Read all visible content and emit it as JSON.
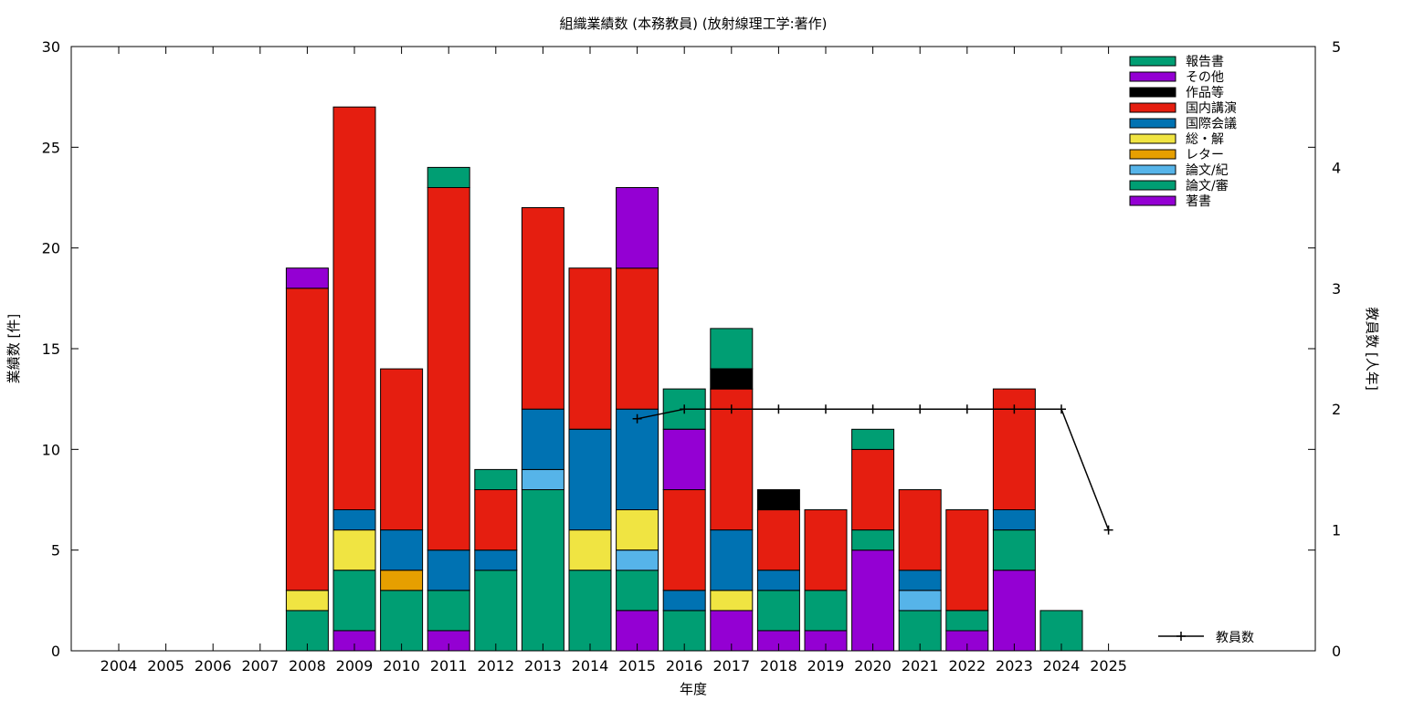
{
  "chart_data": {
    "type": "bar",
    "stacked": true,
    "title": "組織業績数 (本務教員) (放射線理工学:著作)",
    "xlabel": "年度",
    "ylabel": "業績数 [件]",
    "y2label": "教員数 [人年]",
    "ylim": [
      0,
      30
    ],
    "y2lim": [
      0,
      5
    ],
    "yticks": [
      0,
      5,
      10,
      15,
      20,
      25,
      30
    ],
    "y2ticks": [
      0,
      1,
      2,
      3,
      4,
      5
    ],
    "grid": false,
    "legend_position": "top-right",
    "categories": [
      "2004",
      "2005",
      "2006",
      "2007",
      "2008",
      "2009",
      "2010",
      "2011",
      "2012",
      "2013",
      "2014",
      "2015",
      "2016",
      "2017",
      "2018",
      "2019",
      "2020",
      "2021",
      "2022",
      "2023",
      "2024",
      "2025"
    ],
    "series": [
      {
        "name": "著書",
        "color": "#9400d3",
        "values": [
          0,
          0,
          0,
          0,
          0,
          1,
          0,
          1,
          0,
          0,
          0,
          2,
          0,
          2,
          1,
          1,
          5,
          0,
          1,
          4,
          0,
          0
        ]
      },
      {
        "name": "論文/審",
        "color": "#009e73",
        "values": [
          0,
          0,
          0,
          0,
          2,
          3,
          3,
          2,
          4,
          8,
          4,
          2,
          2,
          0,
          2,
          2,
          1,
          2,
          1,
          2,
          2,
          0
        ]
      },
      {
        "name": "論文/紀",
        "color": "#56b4e9",
        "values": [
          0,
          0,
          0,
          0,
          0,
          0,
          0,
          0,
          0,
          1,
          0,
          1,
          0,
          0,
          0,
          0,
          0,
          1,
          0,
          0,
          0,
          0
        ]
      },
      {
        "name": "レター",
        "color": "#e69f00",
        "values": [
          0,
          0,
          0,
          0,
          0,
          0,
          1,
          0,
          0,
          0,
          0,
          0,
          0,
          0,
          0,
          0,
          0,
          0,
          0,
          0,
          0,
          0
        ]
      },
      {
        "name": "総・解",
        "color": "#f0e442",
        "values": [
          0,
          0,
          0,
          0,
          1,
          2,
          0,
          0,
          0,
          0,
          2,
          2,
          0,
          1,
          0,
          0,
          0,
          0,
          0,
          0,
          0,
          0
        ]
      },
      {
        "name": "国際会議",
        "color": "#0072b2",
        "values": [
          0,
          0,
          0,
          0,
          0,
          1,
          2,
          2,
          1,
          3,
          5,
          5,
          1,
          3,
          1,
          0,
          0,
          1,
          0,
          1,
          0,
          0
        ]
      },
      {
        "name": "国内講演",
        "color": "#e51e10",
        "values": [
          0,
          0,
          0,
          0,
          15,
          20,
          8,
          18,
          3,
          10,
          8,
          7,
          5,
          7,
          3,
          4,
          4,
          4,
          5,
          6,
          0,
          0
        ]
      },
      {
        "name": "作品等",
        "color": "#000000",
        "values": [
          0,
          0,
          0,
          0,
          0,
          0,
          0,
          0,
          0,
          0,
          0,
          0,
          0,
          1,
          1,
          0,
          0,
          0,
          0,
          0,
          0,
          0
        ]
      },
      {
        "name": "その他",
        "color": "#9400d3",
        "values": [
          0,
          0,
          0,
          0,
          1,
          0,
          0,
          0,
          0,
          0,
          0,
          4,
          3,
          0,
          0,
          0,
          0,
          0,
          0,
          0,
          0,
          0
        ]
      },
      {
        "name": "報告書",
        "color": "#009e73",
        "values": [
          0,
          0,
          0,
          0,
          0,
          0,
          0,
          1,
          1,
          0,
          0,
          0,
          2,
          2,
          0,
          0,
          1,
          0,
          0,
          0,
          0,
          0
        ]
      }
    ],
    "line_series": {
      "name": "教員数",
      "axis": "y2",
      "color": "#000000",
      "x": [
        "2015",
        "2016",
        "2017",
        "2018",
        "2019",
        "2020",
        "2021",
        "2022",
        "2023",
        "2024",
        "2025"
      ],
      "values": [
        1.92,
        2,
        2,
        2,
        2,
        2,
        2,
        2,
        2,
        2,
        1
      ]
    }
  }
}
